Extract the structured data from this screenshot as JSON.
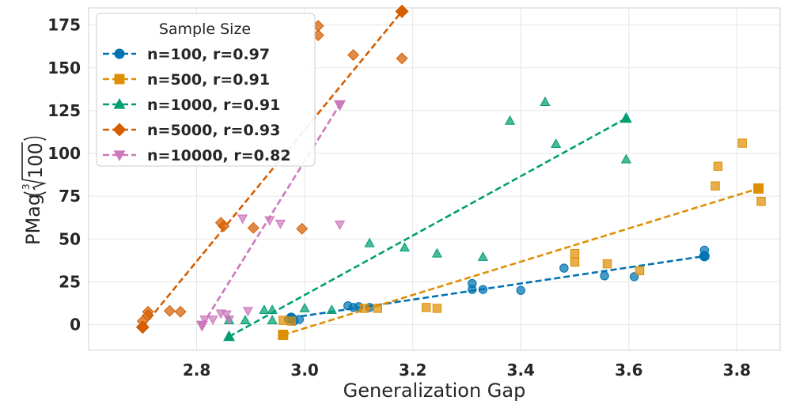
{
  "chart_data": {
    "type": "scatter",
    "title": "",
    "xlabel": "Generalization Gap",
    "ylabel_main": "PMag",
    "ylabel_root_index": "3",
    "ylabel_radicand": "100",
    "xlim": [
      2.6,
      3.88
    ],
    "ylim": [
      -15,
      185
    ],
    "xticks": [
      2.8,
      3.0,
      3.2,
      3.4,
      3.6,
      3.8
    ],
    "xtick_labels": [
      "2.8",
      "3.0",
      "3.2",
      "3.4",
      "3.6",
      "3.8"
    ],
    "yticks": [
      0,
      25,
      50,
      75,
      100,
      125,
      150,
      175
    ],
    "ytick_labels": [
      "0",
      "25",
      "50",
      "75",
      "100",
      "125",
      "150",
      "175"
    ],
    "grid": true,
    "legend_title": "Sample Size",
    "legend_position": "top-left",
    "series": [
      {
        "name": "n=100, r=0.97",
        "color": "#0173b2",
        "marker": "circle",
        "points": [
          [
            2.97,
            3
          ],
          [
            2.98,
            2
          ],
          [
            2.99,
            3
          ],
          [
            3.08,
            11
          ],
          [
            3.09,
            10
          ],
          [
            3.1,
            10.5
          ],
          [
            3.12,
            10
          ],
          [
            3.31,
            24
          ],
          [
            3.31,
            20.5
          ],
          [
            3.33,
            20.5
          ],
          [
            3.4,
            20
          ],
          [
            3.48,
            33
          ],
          [
            3.555,
            28.5
          ],
          [
            3.61,
            28
          ],
          [
            3.74,
            43.5
          ]
        ],
        "fit": [
          [
            2.975,
            4
          ],
          [
            3.74,
            40
          ]
        ]
      },
      {
        "name": "n=500, r=0.91",
        "color": "#de8f05",
        "marker": "square",
        "points": [
          [
            2.96,
            2.5
          ],
          [
            2.975,
            2
          ],
          [
            3.11,
            9.5
          ],
          [
            3.135,
            9.5
          ],
          [
            3.225,
            10
          ],
          [
            3.245,
            9.5
          ],
          [
            3.5,
            41.5
          ],
          [
            3.5,
            36.5
          ],
          [
            3.56,
            35.5
          ],
          [
            3.62,
            31.5
          ],
          [
            3.76,
            81
          ],
          [
            3.765,
            92.5
          ],
          [
            3.81,
            106
          ],
          [
            3.845,
            72
          ]
        ],
        "fit": [
          [
            2.96,
            -6
          ],
          [
            3.84,
            79.5
          ]
        ]
      },
      {
        "name": "n=1000, r=0.91",
        "color": "#029e73",
        "marker": "triangle",
        "points": [
          [
            2.86,
            2.5
          ],
          [
            2.89,
            2.5
          ],
          [
            2.925,
            8.5
          ],
          [
            2.94,
            8.5
          ],
          [
            2.94,
            2.5
          ],
          [
            3.0,
            9.5
          ],
          [
            3.05,
            8.5
          ],
          [
            3.12,
            47.5
          ],
          [
            3.185,
            45
          ],
          [
            3.245,
            41.5
          ],
          [
            3.33,
            39.5
          ],
          [
            3.38,
            119
          ],
          [
            3.445,
            130
          ],
          [
            3.465,
            105.5
          ],
          [
            3.595,
            96.5
          ]
        ],
        "fit": [
          [
            2.86,
            -7
          ],
          [
            3.595,
            120.5
          ]
        ]
      },
      {
        "name": "n=5000, r=0.93",
        "color": "#d55e00",
        "marker": "diamond",
        "points": [
          [
            2.7,
            2
          ],
          [
            2.71,
            5.5
          ],
          [
            2.71,
            7.5
          ],
          [
            2.75,
            8
          ],
          [
            2.77,
            7.5
          ],
          [
            2.845,
            59.5
          ],
          [
            2.85,
            57.5
          ],
          [
            2.905,
            56.5
          ],
          [
            2.995,
            56
          ],
          [
            3.025,
            174.5
          ],
          [
            3.025,
            169
          ],
          [
            3.09,
            157.5
          ],
          [
            3.18,
            155.5
          ]
        ],
        "fit": [
          [
            2.7,
            -1.5
          ],
          [
            3.18,
            183
          ]
        ]
      },
      {
        "name": "n=10000, r=0.82",
        "color": "#cc78bc",
        "marker": "triangle-down",
        "points": [
          [
            2.81,
            0
          ],
          [
            2.815,
            3
          ],
          [
            2.83,
            3
          ],
          [
            2.845,
            6.5
          ],
          [
            2.855,
            6
          ],
          [
            2.86,
            3
          ],
          [
            2.885,
            62
          ],
          [
            2.895,
            8
          ],
          [
            2.935,
            61
          ],
          [
            2.955,
            59
          ],
          [
            3.065,
            58.5
          ],
          [
            3.065,
            128
          ]
        ],
        "fit": [
          [
            2.81,
            -0.5
          ],
          [
            3.065,
            128.5
          ]
        ]
      }
    ]
  }
}
